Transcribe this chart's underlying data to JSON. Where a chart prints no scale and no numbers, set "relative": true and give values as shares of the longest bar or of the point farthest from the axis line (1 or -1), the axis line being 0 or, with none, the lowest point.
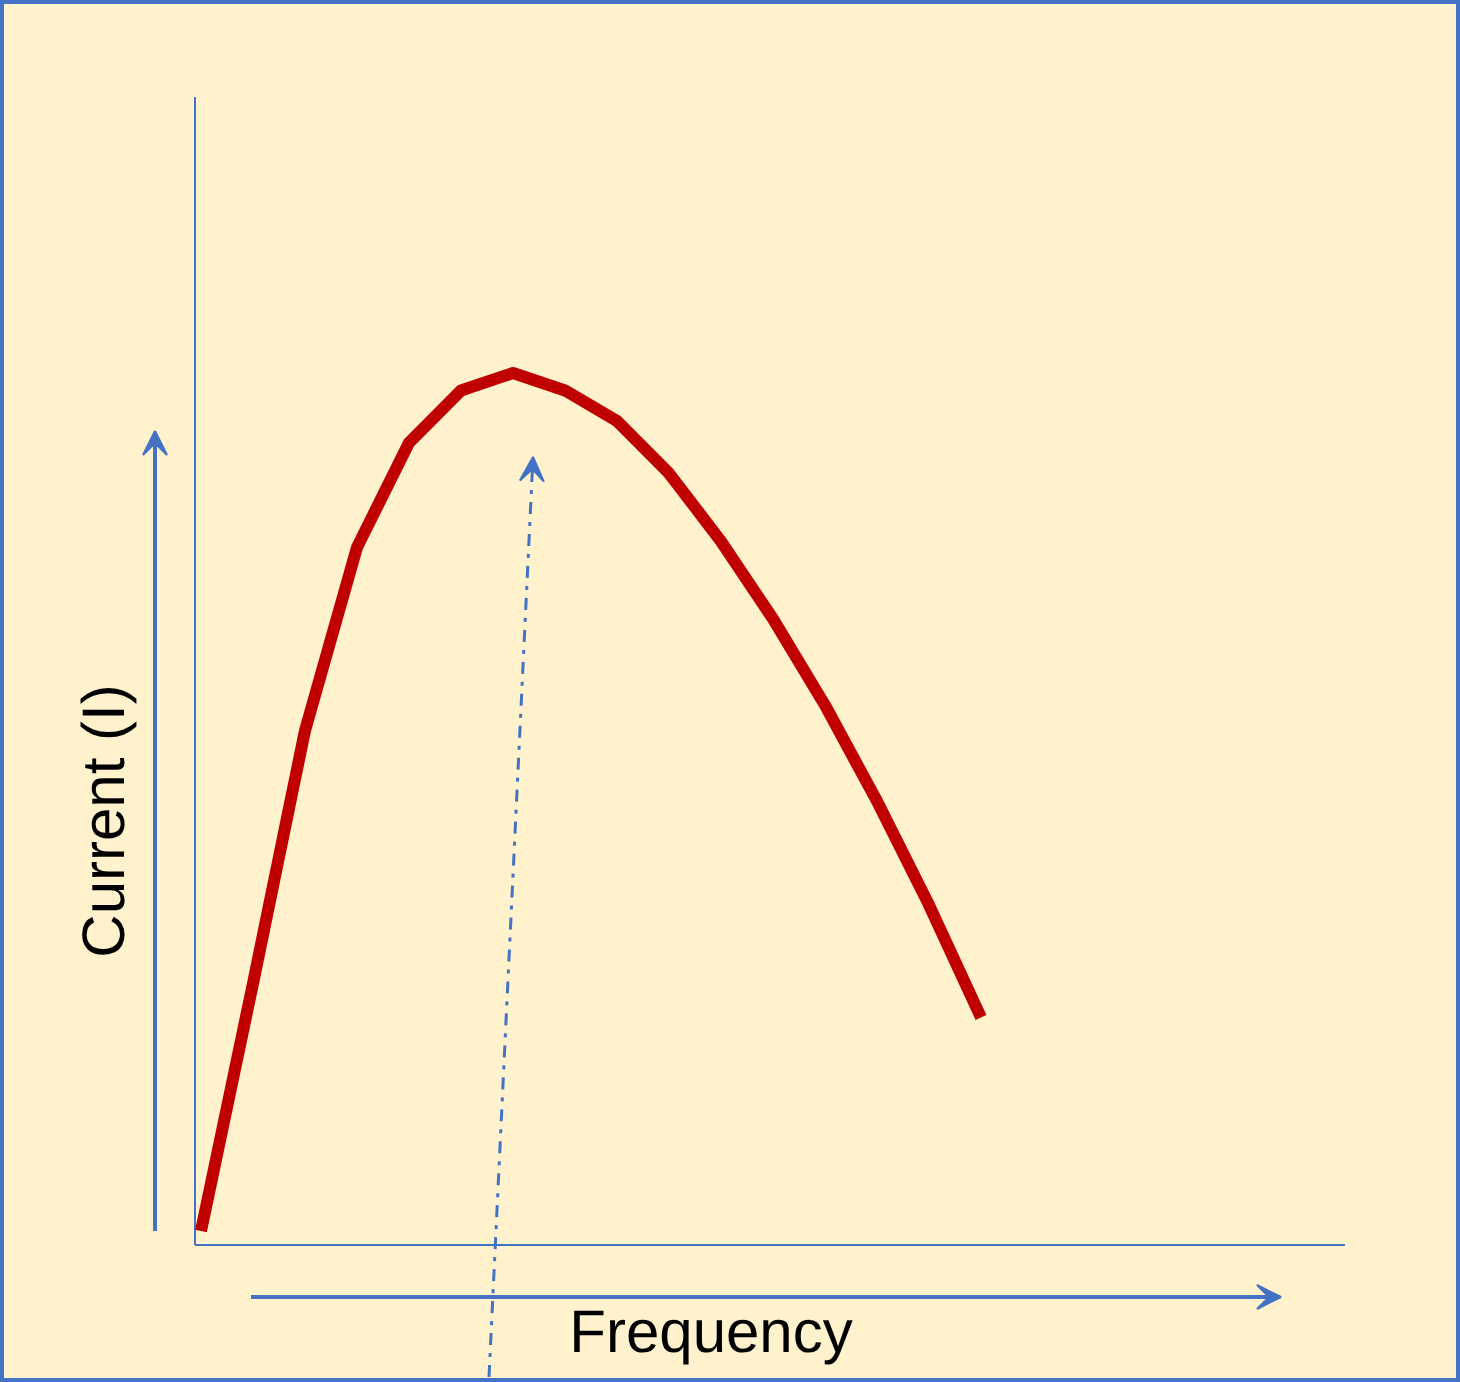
{
  "chart_data": {
    "type": "line",
    "relative": true,
    "xlabel": "Frequency",
    "ylabel": "Current (I)",
    "categories": [
      null,
      null,
      null,
      null,
      null,
      null,
      null,
      null,
      null,
      null,
      null,
      null,
      null,
      null,
      null,
      null
    ],
    "series": [
      {
        "color": "#c00000",
        "values": [
          0.016,
          0.3,
          0.59,
          0.8,
          0.92,
          0.98,
          1,
          0.98,
          0.945,
          0.885,
          0.807,
          0.718,
          0.619,
          0.509,
          0.39,
          0.261
        ]
      }
    ]
  }
}
